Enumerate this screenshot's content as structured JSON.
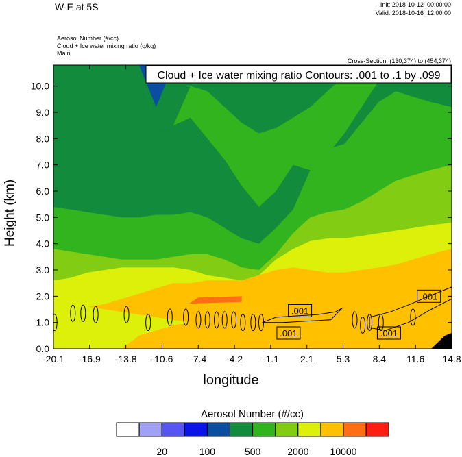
{
  "header": {
    "title": "W-E at 5S",
    "init": "Init: 2018-10-12_00:00:00",
    "valid": "Valid: 2018-10-16_12:00:00",
    "field_lines": [
      "Aerosol Number   (#/cc)",
      "Cloud + Ice water mixing ratio   (g/kg)",
      "Main"
    ],
    "cross_section": "Cross-Section: (130,374) to (454,374)",
    "contour_info": "Cloud + Ice water mixing ratio Contours: .001 to .1 by .099"
  },
  "chart_data": {
    "type": "heatmap",
    "xlabel": "longitude",
    "ylabel": "Height (km)",
    "xlim": [
      -20.1,
      14.8
    ],
    "ylim": [
      0.0,
      10.8
    ],
    "x_ticks": [
      "-20.1",
      "-16.9",
      "-13.8",
      "-10.6",
      "-7.4",
      "-4.2",
      "-1.1",
      "2.1",
      "5.3",
      "8.4",
      "11.6",
      "14.8"
    ],
    "y_ticks": [
      0.0,
      1.0,
      2.0,
      3.0,
      4.0,
      5.0,
      6.0,
      7.0,
      8.0,
      9.0,
      10.0
    ],
    "y_tick_labels": [
      "0.0",
      "1.0",
      "2.0",
      "3.0",
      "4.0",
      "5.0",
      "6.0",
      "7.0",
      "8.0",
      "9.0",
      "10.0"
    ],
    "contour_labels": [
      {
        "text": ".001",
        "lon": 1.5,
        "height": 1.45
      },
      {
        "text": ".001",
        "lon": 0.5,
        "height": 0.6
      },
      {
        "text": ".001",
        "lon": 9.3,
        "height": 0.6
      },
      {
        "text": ".001",
        "lon": 12.8,
        "height": 2.0
      }
    ],
    "colorbar": {
      "title": "Aerosol Number  (#/cc)",
      "colors": [
        "#ffffff",
        "#a0a0f5",
        "#5555f2",
        "#0a14e8",
        "#0a4ea0",
        "#128c3c",
        "#32b41e",
        "#82cd14",
        "#dcf00a",
        "#ffc000",
        "#ff6e14",
        "#ff1e14"
      ],
      "labels": [
        "20",
        "100",
        "500",
        "2000",
        "10000"
      ]
    },
    "field_bands": [
      {
        "color_index": 11,
        "height": [
          [
            1.88,
            1.88,
            1.88,
            1.88,
            1.88,
            1.88,
            1.88,
            1.88,
            1.88,
            1.88,
            1.88,
            1.88,
            1.88,
            1.88,
            1.88,
            1.88,
            1.88,
            1.88,
            1.88,
            1.88,
            1.88,
            1.88,
            1.88,
            1.88
          ],
          [
            1.88,
            1.88,
            1.88,
            1.88,
            1.88,
            1.88,
            1.88,
            1.88,
            1.88,
            1.88,
            1.88,
            1.88,
            1.88,
            1.88,
            1.88,
            1.88,
            1.88,
            1.88,
            1.88,
            1.88,
            1.88,
            1.88,
            1.88,
            1.88
          ]
        ]
      }
    ]
  }
}
